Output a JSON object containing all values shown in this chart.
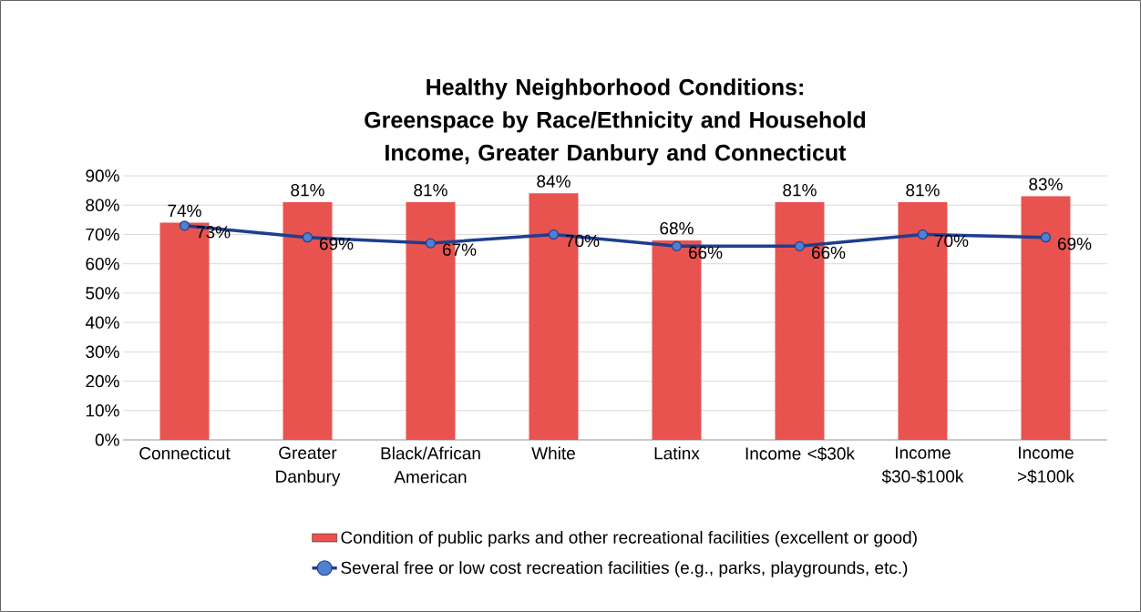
{
  "chart_data": {
    "type": "bar",
    "title": "Healthy Neighborhood Conditions: Greenspace by Race/Ethnicity and Household Income, Greater Danbury and Connecticut",
    "categories": [
      "Connecticut",
      "Greater Danbury",
      "Black/African American",
      "White",
      "Latinx",
      "Income <$30k",
      "Income $30-$100k",
      "Income >$100k"
    ],
    "series": [
      {
        "name": "Condition of public parks and other recreational facilities (excellent or good)",
        "color": "#e9534f",
        "values": [
          74,
          81,
          81,
          84,
          68,
          81,
          81,
          83
        ],
        "value_labels": [
          "74%",
          "81%",
          "81%",
          "84%",
          "68%",
          "81%",
          "81%",
          "83%"
        ]
      },
      {
        "name": "Several free or low cost recreation facilities (e.g., parks, playgrounds, etc.)",
        "type": "line",
        "color": "#1f3e8f",
        "marker": "circle",
        "values": [
          73,
          69,
          67,
          70,
          66,
          66,
          70,
          69
        ],
        "value_labels": [
          "73%",
          "69%",
          "67%",
          "70%",
          "66%",
          "66%",
          "70%",
          "69%"
        ]
      }
    ],
    "ylim": [
      0,
      90
    ],
    "yticks": [
      {
        "value": 0,
        "label": "0%"
      },
      {
        "value": 10,
        "label": "10%"
      },
      {
        "value": 20,
        "label": "20%"
      },
      {
        "value": 30,
        "label": "30%"
      },
      {
        "value": 40,
        "label": "40%"
      },
      {
        "value": 50,
        "label": "50%"
      },
      {
        "value": 60,
        "label": "60%"
      },
      {
        "value": 70,
        "label": "70%"
      },
      {
        "value": 80,
        "label": "80%"
      },
      {
        "value": 90,
        "label": "90%"
      }
    ],
    "grid": "y",
    "legend": "bottom"
  }
}
